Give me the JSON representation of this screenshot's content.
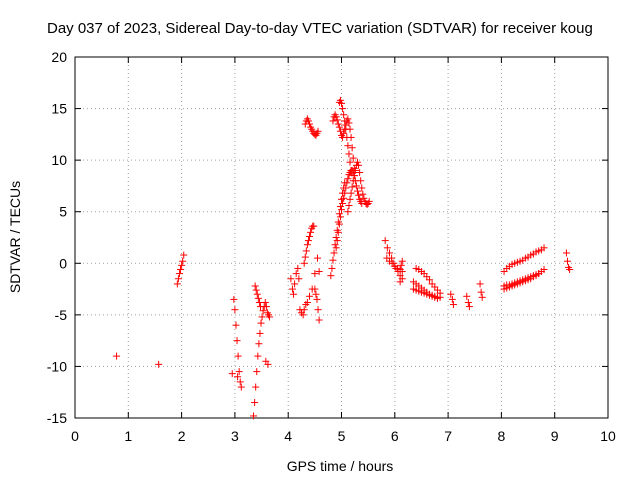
{
  "chart_data": {
    "type": "scatter",
    "title": "Day 037 of 2023, Sidereal Day-to-day VTEC variation (SDTVAR) for receiver koug",
    "xlabel": "GPS time / hours",
    "ylabel": "SDTVAR / TECUs",
    "xlim": [
      0,
      10
    ],
    "ylim": [
      -15,
      20
    ],
    "xticks": [
      "0",
      "1",
      "2",
      "3",
      "4",
      "5",
      "6",
      "7",
      "8",
      "9",
      "10"
    ],
    "yticks": [
      "-15",
      "-10",
      "-5",
      "0",
      "5",
      "10",
      "15",
      "20"
    ],
    "grid": true,
    "marker": "+",
    "color": "#ff0000",
    "segments": [
      {
        "x": [
          0.78,
          1.57
        ],
        "y": [
          -9.0,
          -9.8
        ]
      },
      {
        "x": [
          1.92,
          1.94,
          1.96,
          1.98,
          2.0,
          2.02,
          2.04
        ],
        "y": [
          -2.0,
          -1.5,
          -1.0,
          -0.6,
          -0.2,
          0.2,
          0.8
        ]
      },
      {
        "x": [
          2.98,
          3.0,
          3.02,
          3.04,
          3.06,
          3.08,
          3.1,
          3.12
        ],
        "y": [
          -3.5,
          -4.5,
          -6.0,
          -7.5,
          -9.0,
          -10.5,
          -11.5,
          -12.0
        ]
      },
      {
        "x": [
          2.95,
          3.05
        ],
        "y": [
          -10.7,
          -11.0
        ]
      },
      {
        "x": [
          3.35,
          3.37,
          3.39,
          3.41,
          3.43,
          3.45,
          3.47,
          3.49,
          3.51,
          3.53,
          3.55,
          3.57,
          3.59,
          3.61,
          3.63,
          3.65
        ],
        "y": [
          -14.8,
          -13.5,
          -12.0,
          -10.5,
          -9.0,
          -7.8,
          -6.8,
          -5.8,
          -5.2,
          -4.6,
          -4.2,
          -3.8,
          -4.2,
          -4.8,
          -5.0,
          -5.2
        ]
      },
      {
        "x": [
          3.38,
          3.4,
          3.42,
          3.44,
          3.46,
          3.48
        ],
        "y": [
          -2.2,
          -2.6,
          -3.0,
          -3.4,
          -3.8,
          -4.2
        ]
      },
      {
        "x": [
          3.58,
          3.62
        ],
        "y": [
          -9.5,
          -9.8
        ]
      },
      {
        "x": [
          4.05,
          4.08,
          4.1,
          4.12,
          4.15,
          4.18,
          4.2
        ],
        "y": [
          -1.5,
          -2.5,
          -3.0,
          -2.0,
          -1.0,
          -0.5,
          -1.5
        ]
      },
      {
        "x": [
          4.22,
          4.25,
          4.28,
          4.3,
          4.33,
          4.36,
          4.4,
          4.45,
          4.5,
          4.55,
          4.58
        ],
        "y": [
          -4.5,
          -4.8,
          -5.0,
          -4.5,
          -4.0,
          -3.8,
          -3.2,
          -2.5,
          -1.0,
          0.5,
          -0.8
        ]
      },
      {
        "x": [
          4.3,
          4.32,
          4.34,
          4.36,
          4.38,
          4.4,
          4.42,
          4.44,
          4.46,
          4.48,
          4.5,
          4.52,
          4.54,
          4.56,
          4.58
        ],
        "y": [
          0.0,
          0.6,
          1.2,
          1.8,
          2.2,
          2.6,
          3.0,
          3.4,
          3.6,
          3.6,
          -2.5,
          -3.0,
          -3.5,
          -4.5,
          -5.5
        ]
      },
      {
        "x": [
          4.32,
          4.34,
          4.36,
          4.38,
          4.4,
          4.42,
          4.44,
          4.46,
          4.48,
          4.5,
          4.52,
          4.54,
          4.56
        ],
        "y": [
          13.5,
          13.8,
          14.0,
          13.8,
          13.5,
          13.2,
          13.0,
          12.8,
          12.6,
          12.5,
          12.4,
          12.6,
          12.8
        ]
      },
      {
        "x": [
          4.8,
          4.82,
          4.84,
          4.86,
          4.88,
          4.9,
          4.92,
          4.94,
          4.96,
          4.98,
          5.0,
          5.02,
          5.04,
          5.06
        ],
        "y": [
          -1.2,
          -0.5,
          0.3,
          1.0,
          1.8,
          2.5,
          3.2,
          4.0,
          4.8,
          5.5,
          6.2,
          6.8,
          7.3,
          7.8
        ]
      },
      {
        "x": [
          4.84,
          4.86,
          4.88,
          4.9,
          4.92,
          4.94,
          4.96,
          4.98,
          5.0,
          5.02,
          5.04,
          5.06,
          5.08,
          5.1,
          5.12,
          5.14,
          5.16,
          5.18,
          5.2,
          5.22,
          5.24
        ],
        "y": [
          13.8,
          14.2,
          14.4,
          14.2,
          13.9,
          13.5,
          13.2,
          12.8,
          12.4,
          12.2,
          12.6,
          13.0,
          13.4,
          13.8,
          14.0,
          13.6,
          13.0,
          12.2,
          11.2,
          10.2,
          9.2
        ]
      },
      {
        "x": [
          4.96,
          4.98,
          5.0,
          5.02,
          5.04,
          5.06,
          5.08,
          5.1,
          5.12,
          5.14,
          5.16,
          5.18
        ],
        "y": [
          15.6,
          15.8,
          15.5,
          15.0,
          14.4,
          13.8,
          13.0,
          12.2,
          11.4,
          10.6,
          9.8,
          9.0
        ]
      },
      {
        "x": [
          4.9,
          4.92,
          4.94,
          4.96,
          4.98,
          5.0,
          5.02,
          5.04,
          5.06,
          5.08,
          5.1,
          5.12,
          5.14,
          5.16,
          5.18,
          5.2,
          5.22,
          5.24,
          5.26,
          5.28,
          5.3,
          5.32,
          5.34,
          5.36,
          5.38
        ],
        "y": [
          1.5,
          2.2,
          3.0,
          3.8,
          4.5,
          5.2,
          5.8,
          6.3,
          6.8,
          7.3,
          7.8,
          8.2,
          8.6,
          8.8,
          9.0,
          9.0,
          8.8,
          8.5,
          8.0,
          7.5,
          7.0,
          6.6,
          6.2,
          6.0,
          5.8
        ]
      },
      {
        "x": [
          5.12,
          5.14,
          5.16,
          5.18,
          5.2,
          5.22,
          5.24,
          5.26,
          5.28,
          5.3,
          5.32,
          5.34,
          5.36,
          5.38,
          5.4,
          5.42,
          5.44,
          5.46,
          5.48,
          5.5,
          5.52
        ],
        "y": [
          5.0,
          5.6,
          6.2,
          6.8,
          7.4,
          8.0,
          8.5,
          9.0,
          9.5,
          9.8,
          9.5,
          8.8,
          8.0,
          7.3,
          6.7,
          6.3,
          6.0,
          5.8,
          5.7,
          5.8,
          6.0
        ]
      },
      {
        "x": [
          5.82,
          5.86,
          5.9,
          5.94,
          5.98,
          6.02,
          6.06,
          6.1,
          6.14
        ],
        "y": [
          2.2,
          1.5,
          1.0,
          0.5,
          0.0,
          -0.5,
          -0.8,
          -1.2,
          -1.5
        ]
      },
      {
        "x": [
          5.85,
          5.9,
          5.95,
          6.0,
          6.05,
          6.1,
          6.14
        ],
        "y": [
          0.5,
          0.2,
          0.0,
          -0.3,
          -0.5,
          -0.6,
          -0.8
        ]
      },
      {
        "x": [
          6.1,
          6.12,
          6.14
        ],
        "y": [
          -1.8,
          -0.2,
          0.2
        ]
      },
      {
        "x": [
          6.35,
          6.4,
          6.45,
          6.5,
          6.55,
          6.6,
          6.65,
          6.7,
          6.75,
          6.8,
          6.85
        ],
        "y": [
          -1.8,
          -2.0,
          -2.2,
          -2.4,
          -2.6,
          -2.8,
          -3.0,
          -3.1,
          -3.2,
          -3.3,
          -3.3
        ]
      },
      {
        "x": [
          6.4,
          6.45,
          6.5,
          6.55,
          6.6,
          6.65,
          6.7,
          6.75,
          6.8,
          6.85
        ],
        "y": [
          -0.5,
          -0.6,
          -0.8,
          -1.0,
          -1.3,
          -1.6,
          -2.0,
          -2.3,
          -2.6,
          -2.9
        ]
      },
      {
        "x": [
          6.35,
          6.4,
          6.45,
          6.5,
          6.55,
          6.6,
          6.65,
          6.7,
          6.75,
          6.8
        ],
        "y": [
          -2.5,
          -2.6,
          -2.7,
          -2.8,
          -2.9,
          -3.0,
          -3.1,
          -3.2,
          -3.3,
          -3.4
        ]
      },
      {
        "x": [
          7.05,
          7.08,
          7.1
        ],
        "y": [
          -3.0,
          -3.5,
          -4.0
        ]
      },
      {
        "x": [
          7.35,
          7.38,
          7.4
        ],
        "y": [
          -3.2,
          -3.8,
          -4.2
        ]
      },
      {
        "x": [
          7.6,
          7.62,
          7.64
        ],
        "y": [
          -2.0,
          -2.8,
          -3.3
        ]
      },
      {
        "x": [
          8.05,
          8.1,
          8.15,
          8.2,
          8.25,
          8.3,
          8.35,
          8.4,
          8.45,
          8.5,
          8.55,
          8.6,
          8.65,
          8.7,
          8.75,
          8.8
        ],
        "y": [
          -0.8,
          -0.5,
          -0.3,
          -0.1,
          0.0,
          0.1,
          0.2,
          0.3,
          0.5,
          0.6,
          0.8,
          0.9,
          1.1,
          1.2,
          1.3,
          1.5
        ]
      },
      {
        "x": [
          8.05,
          8.1,
          8.15,
          8.2,
          8.25,
          8.3,
          8.35,
          8.4,
          8.45,
          8.5,
          8.55,
          8.6,
          8.65,
          8.7,
          8.75,
          8.8
        ],
        "y": [
          -2.5,
          -2.4,
          -2.3,
          -2.2,
          -2.1,
          -2.0,
          -1.9,
          -1.8,
          -1.7,
          -1.6,
          -1.5,
          -1.3,
          -1.2,
          -1.0,
          -0.8,
          -0.6
        ]
      },
      {
        "x": [
          8.05,
          8.1,
          8.15,
          8.2,
          8.25,
          8.3,
          8.35,
          8.4,
          8.45,
          8.5,
          8.55,
          8.6,
          8.65,
          8.7
        ],
        "y": [
          -2.2,
          -2.1,
          -2.1,
          -2.0,
          -1.9,
          -1.8,
          -1.7,
          -1.6,
          -1.5,
          -1.4,
          -1.3,
          -1.2,
          -1.1,
          -1.0
        ]
      },
      {
        "x": [
          9.22,
          9.24,
          9.26,
          9.28
        ],
        "y": [
          1.0,
          0.2,
          -0.4,
          -0.6
        ]
      }
    ]
  }
}
